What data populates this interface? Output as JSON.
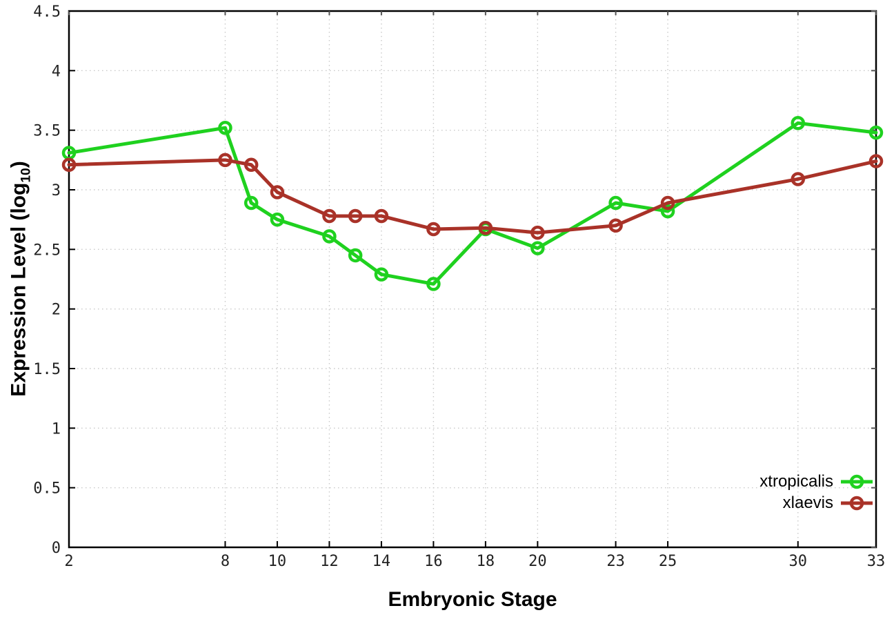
{
  "chart_data": {
    "type": "line",
    "title": "",
    "xlabel": "Embryonic Stage",
    "ylabel_main": "Expression Level (log",
    "ylabel_sub": "10",
    "ylabel_close": ")",
    "xlim": [
      2,
      33
    ],
    "ylim": [
      0,
      4.5
    ],
    "grid": true,
    "legend_position": "bottom-right",
    "x": [
      2,
      8,
      9,
      10,
      12,
      13,
      14,
      16,
      18,
      20,
      23,
      25,
      30,
      33
    ],
    "x_ticks": [
      2,
      8,
      10,
      12,
      14,
      16,
      18,
      20,
      23,
      25,
      30,
      33
    ],
    "x_tick_labels": [
      "2",
      "8",
      "10",
      "12",
      "14",
      "16",
      "18",
      "20",
      "23",
      "25",
      "30",
      "33"
    ],
    "y_ticks": [
      0,
      0.5,
      1,
      1.5,
      2,
      2.5,
      3,
      3.5,
      4,
      4.5
    ],
    "y_tick_labels": [
      "0",
      "0.5",
      "1",
      "1.5",
      "2",
      "2.5",
      "3",
      "3.5",
      "4",
      "4.5"
    ],
    "series": [
      {
        "name": "xtropicalis",
        "color": "#1fd11f",
        "marker": "open-circle",
        "values": [
          3.31,
          3.52,
          2.89,
          2.75,
          2.61,
          2.45,
          2.29,
          2.21,
          2.67,
          2.51,
          2.89,
          2.82,
          3.56,
          3.48
        ]
      },
      {
        "name": "xlaevis",
        "color": "#a93228",
        "marker": "open-circle",
        "values": [
          3.21,
          3.25,
          3.21,
          2.98,
          2.78,
          2.78,
          2.78,
          2.67,
          2.68,
          2.64,
          2.7,
          2.89,
          3.09,
          3.24
        ]
      }
    ],
    "colors": {
      "grid": "#c9c9c9",
      "axis": "#000000",
      "tick": "#222222",
      "mirror_tick": "#555555",
      "background": "#ffffff"
    }
  }
}
